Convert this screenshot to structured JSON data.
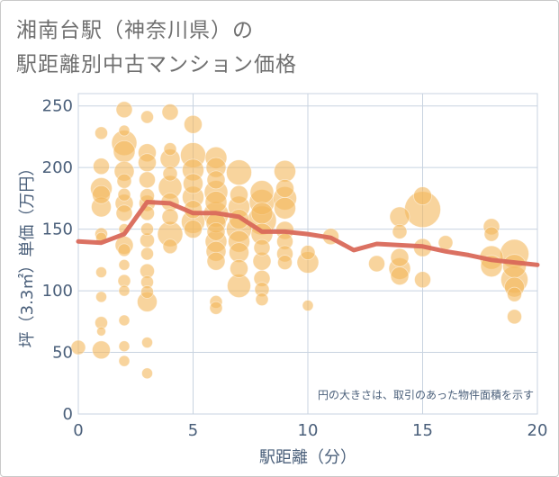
{
  "title_line1": "湘南台駅（神奈川県）の",
  "title_line2": "駅距離別中古マンション価格",
  "chart_data": {
    "type": "scatter",
    "title": "湘南台駅（神奈川県）の駅距離別中古マンション価格",
    "xlabel": "駅距離（分）",
    "ylabel": "坪（3.3㎡）単価（万円）",
    "note": "円の大きさは、取引のあった物件面積を示す",
    "xlim": [
      0,
      20
    ],
    "ylim": [
      0,
      260
    ],
    "xticks": [
      0,
      5,
      10,
      15,
      20
    ],
    "yticks": [
      0,
      50,
      100,
      150,
      200,
      250
    ],
    "grid": true,
    "colors": {
      "bubble": "#f3b75c",
      "line": "#d9695a",
      "grid": "#c8d3e0"
    },
    "series": [
      {
        "type": "bubble",
        "points": [
          {
            "x": 0,
            "y": 54,
            "s": 8
          },
          {
            "x": 1,
            "y": 228,
            "s": 7
          },
          {
            "x": 1,
            "y": 201,
            "s": 9
          },
          {
            "x": 1,
            "y": 183,
            "s": 12
          },
          {
            "x": 1,
            "y": 178,
            "s": 10
          },
          {
            "x": 1,
            "y": 168,
            "s": 11
          },
          {
            "x": 1,
            "y": 146,
            "s": 7
          },
          {
            "x": 1,
            "y": 143,
            "s": 6
          },
          {
            "x": 1,
            "y": 115,
            "s": 6
          },
          {
            "x": 1,
            "y": 95,
            "s": 6
          },
          {
            "x": 1,
            "y": 74,
            "s": 7
          },
          {
            "x": 1,
            "y": 67,
            "s": 5
          },
          {
            "x": 1,
            "y": 52,
            "s": 10
          },
          {
            "x": 2,
            "y": 247,
            "s": 9
          },
          {
            "x": 2,
            "y": 230,
            "s": 6
          },
          {
            "x": 2,
            "y": 220,
            "s": 14
          },
          {
            "x": 2,
            "y": 213,
            "s": 12
          },
          {
            "x": 2,
            "y": 197,
            "s": 11
          },
          {
            "x": 2,
            "y": 189,
            "s": 8
          },
          {
            "x": 2,
            "y": 178,
            "s": 7
          },
          {
            "x": 2,
            "y": 171,
            "s": 10
          },
          {
            "x": 2,
            "y": 163,
            "s": 9
          },
          {
            "x": 2,
            "y": 150,
            "s": 6
          },
          {
            "x": 2,
            "y": 137,
            "s": 10
          },
          {
            "x": 2,
            "y": 133,
            "s": 7
          },
          {
            "x": 2,
            "y": 121,
            "s": 6
          },
          {
            "x": 2,
            "y": 108,
            "s": 7
          },
          {
            "x": 2,
            "y": 100,
            "s": 6
          },
          {
            "x": 2,
            "y": 76,
            "s": 6
          },
          {
            "x": 2,
            "y": 55,
            "s": 6
          },
          {
            "x": 2,
            "y": 43,
            "s": 6
          },
          {
            "x": 3,
            "y": 241,
            "s": 7
          },
          {
            "x": 3,
            "y": 212,
            "s": 10
          },
          {
            "x": 3,
            "y": 204,
            "s": 10
          },
          {
            "x": 3,
            "y": 190,
            "s": 9
          },
          {
            "x": 3,
            "y": 177,
            "s": 8
          },
          {
            "x": 3,
            "y": 171,
            "s": 9
          },
          {
            "x": 3,
            "y": 163,
            "s": 8
          },
          {
            "x": 3,
            "y": 150,
            "s": 7
          },
          {
            "x": 3,
            "y": 141,
            "s": 8
          },
          {
            "x": 3,
            "y": 130,
            "s": 7
          },
          {
            "x": 3,
            "y": 116,
            "s": 8
          },
          {
            "x": 3,
            "y": 107,
            "s": 7
          },
          {
            "x": 3,
            "y": 99,
            "s": 7
          },
          {
            "x": 3,
            "y": 91,
            "s": 11
          },
          {
            "x": 3,
            "y": 58,
            "s": 6
          },
          {
            "x": 3,
            "y": 33,
            "s": 6
          },
          {
            "x": 4,
            "y": 245,
            "s": 9
          },
          {
            "x": 4,
            "y": 215,
            "s": 7
          },
          {
            "x": 4,
            "y": 207,
            "s": 11
          },
          {
            "x": 4,
            "y": 195,
            "s": 8
          },
          {
            "x": 4,
            "y": 184,
            "s": 13
          },
          {
            "x": 4,
            "y": 172,
            "s": 10
          },
          {
            "x": 4,
            "y": 160,
            "s": 9
          },
          {
            "x": 4,
            "y": 146,
            "s": 14
          },
          {
            "x": 4,
            "y": 136,
            "s": 8
          },
          {
            "x": 5,
            "y": 235,
            "s": 10
          },
          {
            "x": 5,
            "y": 210,
            "s": 14
          },
          {
            "x": 5,
            "y": 198,
            "s": 12
          },
          {
            "x": 5,
            "y": 187,
            "s": 11
          },
          {
            "x": 5,
            "y": 176,
            "s": 12
          },
          {
            "x": 5,
            "y": 166,
            "s": 10
          },
          {
            "x": 5,
            "y": 156,
            "s": 13
          },
          {
            "x": 5,
            "y": 150,
            "s": 10
          },
          {
            "x": 6,
            "y": 208,
            "s": 12
          },
          {
            "x": 6,
            "y": 200,
            "s": 11
          },
          {
            "x": 6,
            "y": 190,
            "s": 10
          },
          {
            "x": 6,
            "y": 180,
            "s": 13
          },
          {
            "x": 6,
            "y": 172,
            "s": 12
          },
          {
            "x": 6,
            "y": 162,
            "s": 14
          },
          {
            "x": 6,
            "y": 155,
            "s": 11
          },
          {
            "x": 6,
            "y": 148,
            "s": 10
          },
          {
            "x": 6,
            "y": 140,
            "s": 12
          },
          {
            "x": 6,
            "y": 132,
            "s": 11
          },
          {
            "x": 6,
            "y": 124,
            "s": 10
          },
          {
            "x": 6,
            "y": 91,
            "s": 7
          },
          {
            "x": 6,
            "y": 86,
            "s": 7
          },
          {
            "x": 7,
            "y": 196,
            "s": 14
          },
          {
            "x": 7,
            "y": 178,
            "s": 10
          },
          {
            "x": 7,
            "y": 168,
            "s": 12
          },
          {
            "x": 7,
            "y": 158,
            "s": 11
          },
          {
            "x": 7,
            "y": 150,
            "s": 14
          },
          {
            "x": 7,
            "y": 140,
            "s": 12
          },
          {
            "x": 7,
            "y": 131,
            "s": 11
          },
          {
            "x": 7,
            "y": 118,
            "s": 10
          },
          {
            "x": 7,
            "y": 104,
            "s": 13
          },
          {
            "x": 8,
            "y": 180,
            "s": 13
          },
          {
            "x": 8,
            "y": 172,
            "s": 14
          },
          {
            "x": 8,
            "y": 163,
            "s": 12
          },
          {
            "x": 8,
            "y": 157,
            "s": 16
          },
          {
            "x": 8,
            "y": 146,
            "s": 12
          },
          {
            "x": 8,
            "y": 135,
            "s": 9
          },
          {
            "x": 8,
            "y": 124,
            "s": 10
          },
          {
            "x": 8,
            "y": 110,
            "s": 9
          },
          {
            "x": 8,
            "y": 101,
            "s": 8
          },
          {
            "x": 8,
            "y": 93,
            "s": 7
          },
          {
            "x": 9,
            "y": 197,
            "s": 12
          },
          {
            "x": 9,
            "y": 183,
            "s": 10
          },
          {
            "x": 9,
            "y": 175,
            "s": 13
          },
          {
            "x": 9,
            "y": 167,
            "s": 12
          },
          {
            "x": 9,
            "y": 149,
            "s": 10
          },
          {
            "x": 9,
            "y": 140,
            "s": 9
          },
          {
            "x": 9,
            "y": 130,
            "s": 9
          },
          {
            "x": 9,
            "y": 123,
            "s": 8
          },
          {
            "x": 10,
            "y": 131,
            "s": 8
          },
          {
            "x": 10,
            "y": 123,
            "s": 12
          },
          {
            "x": 10,
            "y": 88,
            "s": 6
          },
          {
            "x": 11,
            "y": 144,
            "s": 9
          },
          {
            "x": 13,
            "y": 122,
            "s": 9
          },
          {
            "x": 14,
            "y": 160,
            "s": 11
          },
          {
            "x": 14,
            "y": 148,
            "s": 8
          },
          {
            "x": 14,
            "y": 127,
            "s": 10
          },
          {
            "x": 14,
            "y": 118,
            "s": 12
          },
          {
            "x": 14,
            "y": 112,
            "s": 10
          },
          {
            "x": 15,
            "y": 177,
            "s": 10
          },
          {
            "x": 15,
            "y": 166,
            "s": 20
          },
          {
            "x": 15,
            "y": 135,
            "s": 10
          },
          {
            "x": 15,
            "y": 109,
            "s": 9
          },
          {
            "x": 16,
            "y": 139,
            "s": 8
          },
          {
            "x": 18,
            "y": 152,
            "s": 9
          },
          {
            "x": 18,
            "y": 146,
            "s": 8
          },
          {
            "x": 18,
            "y": 127,
            "s": 13
          },
          {
            "x": 18,
            "y": 120,
            "s": 12
          },
          {
            "x": 19,
            "y": 130,
            "s": 16
          },
          {
            "x": 19,
            "y": 120,
            "s": 13
          },
          {
            "x": 19,
            "y": 109,
            "s": 15
          },
          {
            "x": 19,
            "y": 103,
            "s": 11
          },
          {
            "x": 19,
            "y": 97,
            "s": 8
          },
          {
            "x": 19,
            "y": 79,
            "s": 8
          }
        ]
      },
      {
        "type": "line",
        "x": [
          0,
          1,
          2,
          3,
          4,
          5,
          6,
          7,
          8,
          9,
          10,
          11,
          12,
          13,
          14,
          15,
          16,
          17,
          18,
          19,
          20
        ],
        "values": [
          140,
          139,
          146,
          172,
          171,
          163,
          163,
          160,
          148,
          148,
          146,
          143,
          133,
          138,
          137,
          136,
          132,
          129,
          125,
          123,
          121
        ]
      }
    ]
  }
}
